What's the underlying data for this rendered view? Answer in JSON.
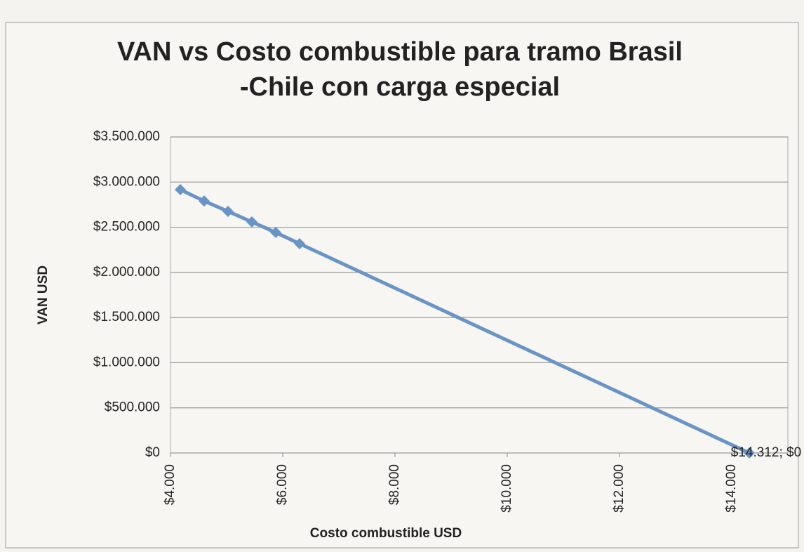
{
  "chart_data": {
    "type": "scatter-line",
    "title": [
      "VAN vs Costo combustible para tramo Brasil",
      "-Chile con carga especial"
    ],
    "x_label": "Costo combustible  USD",
    "y_label": "VAN USD",
    "x": [
      4175,
      4600,
      5025,
      5450,
      5875,
      6300,
      14312
    ],
    "values": [
      2917000,
      2790000,
      2676000,
      2559000,
      2442000,
      2318000,
      0
    ],
    "value_labels": [
      null,
      null,
      null,
      null,
      null,
      null,
      "$14.312; $0"
    ],
    "color": "#6a93c6",
    "xlim": [
      4000,
      15000
    ],
    "xticks": [
      {
        "value": 4000,
        "label": "$4.000"
      },
      {
        "value": 6000,
        "label": "$6.000"
      },
      {
        "value": 8000,
        "label": "$8.000"
      },
      {
        "value": 10000,
        "label": "$10.000"
      },
      {
        "value": 12000,
        "label": "$12.000"
      },
      {
        "value": 14000,
        "label": "$14.000"
      }
    ],
    "ylim": [
      0,
      3500000
    ],
    "yticks": [
      {
        "value": 0,
        "label": "$0"
      },
      {
        "value": 500000,
        "label": "$500.000"
      },
      {
        "value": 1000000,
        "label": "$1.000.000"
      },
      {
        "value": 1500000,
        "label": "$1.500.000"
      },
      {
        "value": 2000000,
        "label": "$2.000.000"
      },
      {
        "value": 2500000,
        "label": "$2.500.000"
      },
      {
        "value": 3000000,
        "label": "$3.000.000"
      },
      {
        "value": 3500000,
        "label": "$3.500.000"
      }
    ],
    "grid": true
  }
}
